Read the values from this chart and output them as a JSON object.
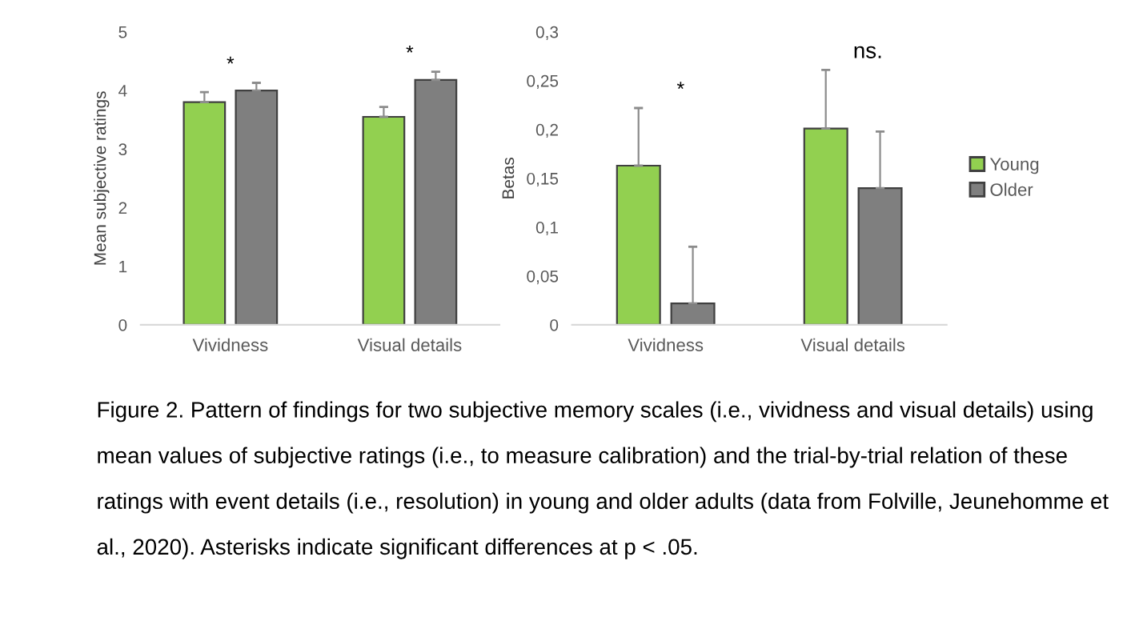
{
  "chart_data": [
    {
      "type": "bar",
      "ylabel": "Mean subjective ratings",
      "categories": [
        "Vividness",
        "Visual details"
      ],
      "series": [
        {
          "color": "#92d050",
          "values": [
            3.8,
            3.55
          ],
          "errors": [
            [
              3.8,
              3.97
            ],
            [
              3.55,
              3.72
            ]
          ]
        },
        {
          "color": "#7f7f7f",
          "values": [
            4.0,
            4.18
          ],
          "errors": [
            [
              4.0,
              4.13
            ],
            [
              4.18,
              4.32
            ]
          ]
        }
      ],
      "ylim": [
        0,
        5
      ],
      "yticks": [
        0,
        1,
        2,
        3,
        4,
        5
      ],
      "grid": false,
      "legend": false,
      "annotations": [
        "*",
        "*"
      ]
    },
    {
      "type": "bar",
      "ylabel": "Betas",
      "categories": [
        "Vividness",
        "Visual details"
      ],
      "series": [
        {
          "name": "Young",
          "color": "#92d050",
          "values": [
            0.163,
            0.201
          ],
          "errors": [
            [
              0.163,
              0.222
            ],
            [
              0.201,
              0.261
            ]
          ]
        },
        {
          "name": "Older",
          "color": "#7f7f7f",
          "values": [
            0.022,
            0.14
          ],
          "errors": [
            [
              0.022,
              0.08
            ],
            [
              0.14,
              0.198
            ]
          ]
        }
      ],
      "ylim": [
        0,
        0.3
      ],
      "yticks": [
        0,
        {
          "value": 0.05,
          "label": "0,05"
        },
        {
          "value": 0.1,
          "label": "0,1"
        },
        {
          "value": 0.15,
          "label": "0,15"
        },
        {
          "value": 0.2,
          "label": "0,2"
        },
        {
          "value": 0.25,
          "label": "0,25"
        },
        {
          "value": 0.3,
          "label": "0,3"
        }
      ],
      "grid": false,
      "legend": "right",
      "annotations": [
        "*",
        "ns.",
        "Figure 2. Pattern of findings for two subjective memory scales (i.e., vividness and visual details) using mean values of subjective ratings (i.e., to measure calibration) and the trial-by-trial relation of these ratings with event details (i.e., resolution) in young and older adults (data from Folville, Jeunehomme et al., 2020). Asterisks indicate significant differences at p < .05."
      ]
    }
  ]
}
